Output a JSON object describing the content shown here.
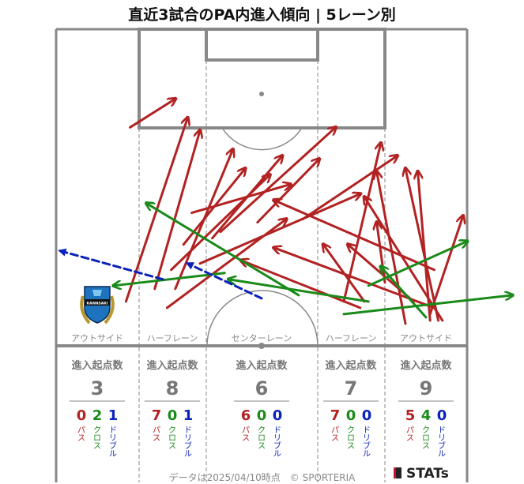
{
  "title": "直近3試合のPA内進入傾向 | 5レーン別",
  "footer": {
    "note": "データは2025/04/10時点　© SPORTERIA",
    "brand": "STATs"
  },
  "crest": {
    "text": "KAWASAKI"
  },
  "colors": {
    "pass": "#b22222",
    "cross": "#1a8a1a",
    "dribble": "#0a22bb",
    "line": "#888888"
  },
  "chart_data": {
    "type": "arrow-map",
    "lanes": [
      {
        "label": "アウトサイド",
        "header": "進入起点数",
        "total": "3",
        "pass": "0",
        "cross": "2",
        "dribble": "1"
      },
      {
        "label": "ハーフレーン",
        "header": "進入起点数",
        "total": "8",
        "pass": "7",
        "cross": "0",
        "dribble": "1"
      },
      {
        "label": "センターレーン",
        "header": "進入起点数",
        "total": "6",
        "pass": "6",
        "cross": "0",
        "dribble": "0"
      },
      {
        "label": "ハーフレーン",
        "header": "進入起点数",
        "total": "7",
        "pass": "7",
        "cross": "0",
        "dribble": "0"
      },
      {
        "label": "アウトサイド",
        "header": "進入起点数",
        "total": "9",
        "pass": "5",
        "cross": "4",
        "dribble": "0"
      }
    ],
    "categories": {
      "pass": "パス",
      "cross": "クロス",
      "dribble": "ドリブル"
    },
    "arrows": [
      {
        "type": "pass",
        "from": [
          29,
          22
        ],
        "to": [
          18,
          31
        ]
      },
      {
        "type": "pass",
        "from": [
          32,
          28
        ],
        "to": [
          17,
          86
        ]
      },
      {
        "type": "pass",
        "from": [
          35,
          32
        ],
        "to": [
          24,
          82
        ]
      },
      {
        "type": "pass",
        "from": [
          43,
          38
        ],
        "to": [
          29,
          82
        ]
      },
      {
        "type": "pass",
        "from": [
          46,
          44
        ],
        "to": [
          31,
          68
        ]
      },
      {
        "type": "pass",
        "from": [
          52,
          46
        ],
        "to": [
          28,
          76
        ]
      },
      {
        "type": "pass",
        "from": [
          57,
          49
        ],
        "to": [
          33,
          58
        ]
      },
      {
        "type": "pass",
        "from": [
          55,
          40
        ],
        "to": [
          38,
          66
        ]
      },
      {
        "type": "pass",
        "from": [
          68,
          31
        ],
        "to": [
          40,
          64
        ]
      },
      {
        "type": "pass",
        "from": [
          74,
          52
        ],
        "to": [
          35,
          74
        ]
      },
      {
        "type": "pass",
        "from": [
          64,
          41
        ],
        "to": [
          49,
          61
        ]
      },
      {
        "type": "pass",
        "from": [
          83,
          40
        ],
        "to": [
          60,
          60
        ]
      },
      {
        "type": "pass",
        "from": [
          79,
          36
        ],
        "to": [
          70,
          86
        ]
      },
      {
        "type": "pass",
        "from": [
          56,
          60
        ],
        "to": [
          27,
          88
        ]
      },
      {
        "type": "pass",
        "from": [
          65,
          68
        ],
        "to": [
          75,
          86
        ]
      },
      {
        "type": "pass",
        "from": [
          53,
          54
        ],
        "to": [
          92,
          76
        ]
      },
      {
        "type": "pass",
        "from": [
          45,
          73
        ],
        "to": [
          74,
          88
        ]
      },
      {
        "type": "pass",
        "from": [
          53,
          69
        ],
        "to": [
          92,
          88
        ]
      },
      {
        "type": "pass",
        "from": [
          78,
          61
        ],
        "to": [
          80,
          80
        ]
      },
      {
        "type": "pass",
        "from": [
          71,
          68
        ],
        "to": [
          87,
          86
        ]
      },
      {
        "type": "pass",
        "from": [
          75,
          53
        ],
        "to": [
          94,
          92
        ]
      },
      {
        "type": "pass",
        "from": [
          85,
          44
        ],
        "to": [
          93,
          92
        ]
      },
      {
        "type": "pass",
        "from": [
          78,
          45
        ],
        "to": [
          85,
          93
        ]
      },
      {
        "type": "pass",
        "from": [
          88,
          45
        ],
        "to": [
          91,
          92
        ]
      },
      {
        "type": "pass",
        "from": [
          99,
          59
        ],
        "to": [
          91,
          90
        ]
      },
      {
        "type": "cross",
        "from": [
          14,
          81
        ],
        "to": [
          41,
          77
        ]
      },
      {
        "type": "cross",
        "from": [
          22,
          55
        ],
        "to": [
          59,
          84
        ]
      },
      {
        "type": "cross",
        "from": [
          42,
          79
        ],
        "to": [
          76,
          86
        ]
      },
      {
        "type": "cross",
        "from": [
          79,
          75
        ],
        "to": [
          90,
          91
        ]
      },
      {
        "type": "cross",
        "from": [
          100,
          67
        ],
        "to": [
          76,
          81
        ]
      },
      {
        "type": "cross",
        "from": [
          111,
          84
        ],
        "to": [
          70,
          90
        ]
      },
      {
        "type": "dribble",
        "from": [
          1,
          70
        ],
        "to": [
          26,
          79
        ]
      },
      {
        "type": "dribble",
        "from": [
          32,
          74
        ],
        "to": [
          50,
          85
        ]
      }
    ]
  }
}
